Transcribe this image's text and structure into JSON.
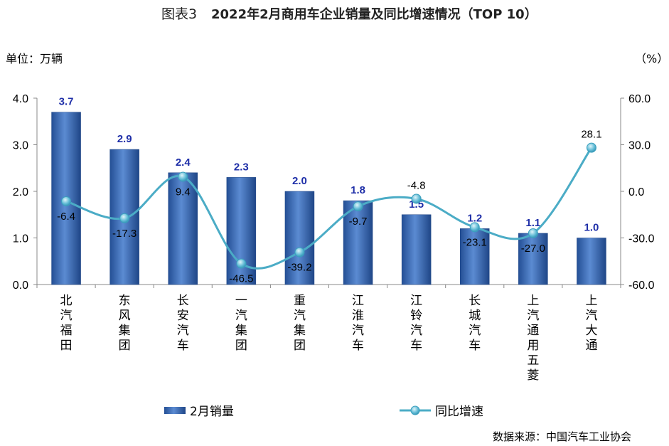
{
  "header": {
    "prefix": "图表3",
    "title": "2022年2月商用车企业销量及同比增速情况（TOP 10）"
  },
  "units": {
    "left": "单位：万辆",
    "right": "（%）"
  },
  "source": "数据来源：中国汽车工业协会",
  "colors": {
    "bar": "#2e5fa8",
    "bar_light": "#5f8fd4",
    "line": "#4bacc6",
    "bar_label": "#1f2fa8"
  },
  "chart_data": {
    "type": "bar",
    "title": "2022年2月商用车企业销量及同比增速情况（TOP 10）",
    "categories": [
      "北汽福田",
      "东风集团",
      "长安汽车",
      "一汽集团",
      "重汽集团",
      "江淮汽车",
      "江铃汽车",
      "长城汽车",
      "上汽通用五菱",
      "上汽大通"
    ],
    "series": [
      {
        "name": "2月销量",
        "type": "bar",
        "axis": "left",
        "values": [
          3.7,
          2.9,
          2.4,
          2.3,
          2.0,
          1.8,
          1.5,
          1.2,
          1.1,
          1.0
        ],
        "labels": [
          "3.7",
          "2.9",
          "2.4",
          "2.3",
          "2.0",
          "1.8",
          "1.5",
          "1.2",
          "1.1",
          "1.0"
        ]
      },
      {
        "name": "同比增速",
        "type": "line",
        "axis": "right",
        "values": [
          -6.4,
          -17.3,
          9.4,
          -46.5,
          -39.2,
          -9.7,
          -4.8,
          -23.1,
          -27.0,
          28.1
        ],
        "labels": [
          "-6.4",
          "-17.3",
          "9.4",
          "-46.5",
          "-39.2",
          "-9.7",
          "-4.8",
          "-23.1",
          "-27.0",
          "28.1"
        ]
      }
    ],
    "y_left": {
      "min": 0,
      "max": 4,
      "ticks": [
        "0.0",
        "1.0",
        "2.0",
        "3.0",
        "4.0"
      ]
    },
    "y_right": {
      "min": -60,
      "max": 60,
      "ticks": [
        "-60.0",
        "-30.0",
        "0.0",
        "30.0",
        "60.0"
      ]
    },
    "ylabel": "单位：万辆",
    "y2label": "（%）",
    "legend": {
      "placement": "bottom",
      "items": [
        "2月销量",
        "同比增速"
      ]
    },
    "grid": false
  }
}
